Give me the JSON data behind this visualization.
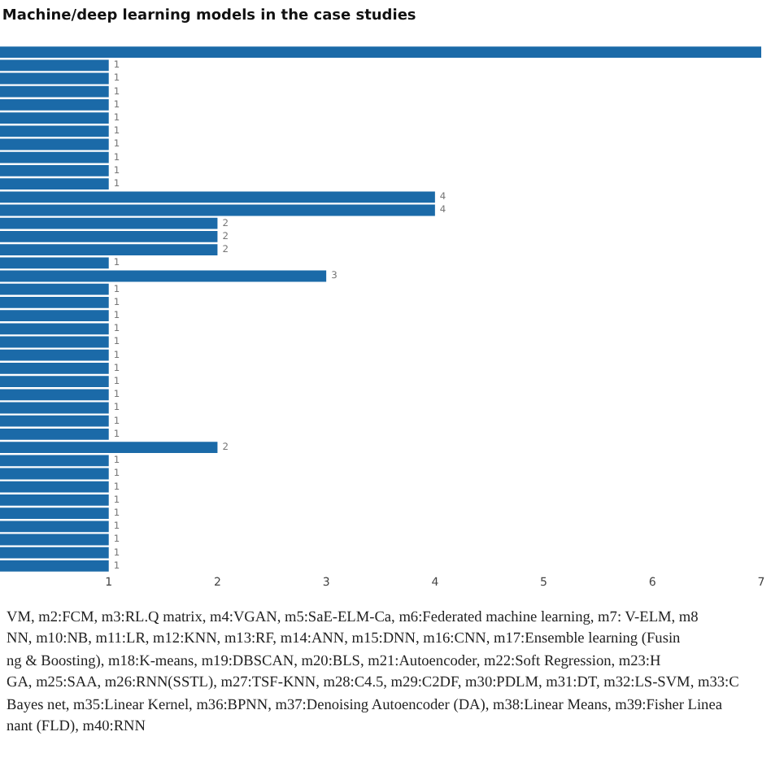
{
  "chart_data": {
    "type": "bar",
    "orientation": "horizontal",
    "title": "Machine/deep learning models in the case studies",
    "categories": [
      null,
      null,
      null,
      null,
      null,
      null,
      null,
      null,
      null,
      null,
      null,
      null,
      null,
      null,
      null,
      null,
      null,
      null,
      null,
      null,
      null,
      null,
      null,
      null,
      null,
      null,
      null,
      null,
      null,
      null,
      null,
      null,
      null,
      null,
      null,
      null,
      null,
      null,
      null,
      null
    ],
    "values": [
      7,
      1,
      1,
      1,
      1,
      1,
      1,
      1,
      1,
      1,
      1,
      4,
      4,
      2,
      2,
      2,
      1,
      3,
      1,
      1,
      1,
      1,
      1,
      1,
      1,
      1,
      1,
      1,
      1,
      1,
      2,
      1,
      1,
      1,
      1,
      1,
      1,
      1,
      1,
      1
    ],
    "value_labels": [
      null,
      "1",
      "1",
      "1",
      "1",
      "1",
      "1",
      "1",
      "1",
      "1",
      "1",
      "4",
      "4",
      "2",
      "2",
      "2",
      "1",
      "3",
      "1",
      "1",
      "1",
      "1",
      "1",
      "1",
      "1",
      "1",
      "1",
      "1",
      "1",
      "1",
      "2",
      "1",
      "1",
      "1",
      "1",
      "1",
      "1",
      "1",
      "1",
      "1"
    ],
    "color": "#1b6aa8",
    "xlim": [
      0,
      7
    ],
    "xticks": [
      1,
      2,
      3,
      4,
      5,
      6,
      7
    ],
    "tick_labels": "x",
    "grid": false,
    "annotations": [
      "VM, m2:FCM, m3:RL.Q matrix, m4:VGAN, m5:SaE-ELM-Ca, m6:Federated machine learning, m7: V-ELM, m8\nNN, m10:NB, m11:LR, m12:KNN, m13:RF, m14:ANN, m15:DNN, m16:CNN, m17:Ensemble learning (Fusin\nng & Boosting), m18:K-means, m19:DBSCAN, m20:BLS, m21:Autoencoder, m22:Soft Regression, m23:H\nGA, m25:SAA, m26:RNN(SSTL), m27:TSF-KNN, m28:C4.5, m29:C2DF, m30:PDLM, m31:DT, m32:LS-SVM, m33:C\nBayes net, m35:Linear Kernel, m36:BPNN, m37:Denoising Autoencoder (DA), m38:Linear Means, m39:Fisher Linea\nnant (FLD), m40:RNN"
    ]
  }
}
